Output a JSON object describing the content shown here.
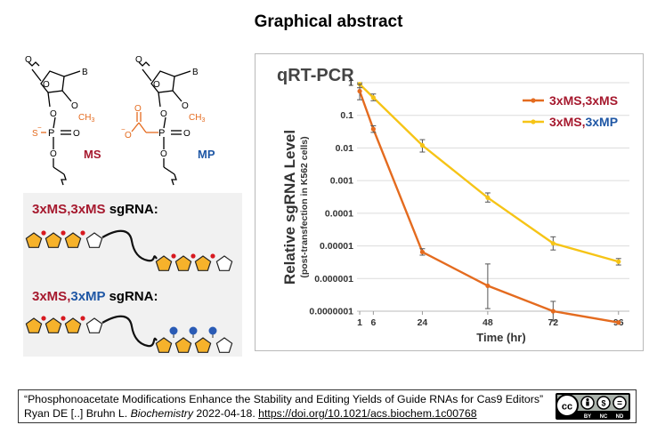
{
  "title": "Graphical abstract",
  "chem": {
    "ms_label": "MS",
    "mp_label": "MP",
    "b_label": "B",
    "o_label": "O",
    "p_label": "P",
    "s_label": "S",
    "ch3_label": "CH",
    "ch3_sub": "3",
    "minus": "−"
  },
  "schematic": {
    "line1": {
      "a": "3xMS",
      "sep": ",",
      "b": "3xMS",
      "suffix": " sgRNA:"
    },
    "line2": {
      "a": "3xMS",
      "sep": ",",
      "b": "3xMP",
      "suffix": " sgRNA:"
    }
  },
  "chart_data": {
    "type": "line",
    "title": "qRT-PCR",
    "ylabel": "Relative sgRNA Level",
    "ylabel_sub": "(post-transfection in K562 cells)",
    "xlabel": "Time (hr)",
    "x_ticks": [
      "1",
      "6",
      "24",
      "48",
      "72",
      "96"
    ],
    "y_ticks": [
      "1",
      "0.1",
      "0.01",
      "0.001",
      "0.0001",
      "0.00001",
      "0.000001",
      "0.0000001"
    ],
    "y_scale": "log",
    "ylim": [
      1e-07,
      1
    ],
    "xlim": [
      0,
      100
    ],
    "grid": "horizontal",
    "legend_position": "top-right",
    "series": [
      {
        "name_a": "3xMS",
        "name_b": "3xMS",
        "color": "#e46b1f",
        "x": [
          1,
          6,
          24,
          48,
          72,
          96
        ],
        "y": [
          0.55,
          0.038,
          6.5e-06,
          6e-07,
          1e-07,
          4.5e-08
        ],
        "err": [
          [
            0.3,
            0.9
          ],
          [
            0.03,
            0.048
          ],
          [
            5.2e-06,
            8.2e-06
          ],
          [
            1.2e-07,
            2.8e-06
          ],
          [
            5e-08,
            2e-07
          ],
          null
        ]
      },
      {
        "name_a": "3xMS",
        "name_b": "3xMP",
        "color": "#f6c416",
        "x": [
          1,
          6,
          24,
          48,
          72,
          96
        ],
        "y": [
          0.9,
          0.35,
          0.012,
          0.0003,
          1.2e-05,
          3.3e-06
        ],
        "err": [
          [
            0.7,
            1.0
          ],
          [
            0.28,
            0.45
          ],
          [
            0.0075,
            0.018
          ],
          [
            0.00022,
            0.00042
          ],
          [
            7.5e-06,
            1.9e-05
          ],
          [
            2.6e-06,
            4.1e-06
          ]
        ]
      }
    ]
  },
  "citation": {
    "line1": "“Phosphonoacetate Modifications Enhance the Stability and Editing Yields of Guide RNAs for Cas9 Editors”",
    "authors": "Ryan DE [..] Bruhn L. ",
    "journal": "Biochemistry",
    "date": " 2022-04-18. ",
    "doi": "https://doi.org/10.1021/acs.biochem.1c00768"
  },
  "license": {
    "cc": "cc",
    "by": "BY",
    "nc": "NC",
    "nd": "ND",
    "dollar": "$",
    "eq": "="
  }
}
